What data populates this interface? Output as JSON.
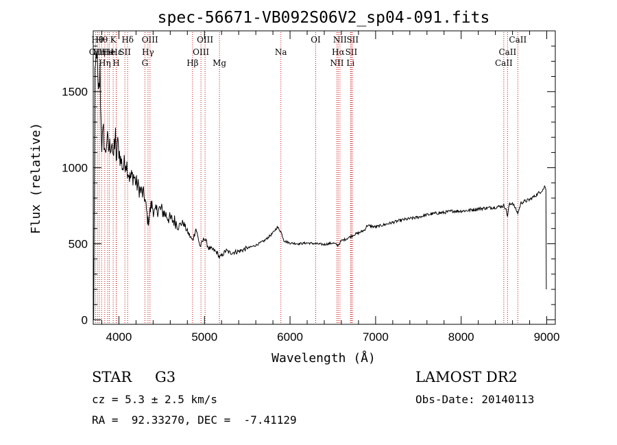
{
  "chart_data": {
    "type": "line",
    "title": "spec-56671-VB092S06V2_sp04-091.fits",
    "xlabel": "Wavelength (Å)",
    "ylabel": "Flux (relative)",
    "xlim": [
      3700,
      9100
    ],
    "ylim": [
      -30,
      1900
    ],
    "grid": false,
    "x_ticks": [
      4000,
      5000,
      6000,
      7000,
      8000,
      9000
    ],
    "x_tick_labels": [
      "4000",
      "5000",
      "6000",
      "7000",
      "8000",
      "9000"
    ],
    "y_ticks": [
      0,
      500,
      1000,
      1500
    ],
    "y_tick_labels": [
      "0",
      "500",
      "1000",
      "1500"
    ],
    "series": [
      {
        "x": [
          3705,
          3720,
          3740,
          3760,
          3780,
          3790,
          3800,
          3820,
          3840,
          3860,
          3880,
          3900,
          3920,
          3933,
          3945,
          3960,
          3968,
          3980,
          4000,
          4020,
          4050,
          4080,
          4100,
          4130,
          4170,
          4200,
          4250,
          4300,
          4340,
          4380,
          4420,
          4460,
          4500,
          4550,
          4600,
          4650,
          4700,
          4750,
          4800,
          4861,
          4900,
          4950,
          5000,
          5050,
          5100,
          5150,
          5175,
          5200,
          5250,
          5300,
          5400,
          5500,
          5600,
          5700,
          5800,
          5850,
          5893,
          5930,
          5970,
          6000,
          6100,
          6200,
          6300,
          6400,
          6500,
          6563,
          6600,
          6650,
          6700,
          6750,
          6800,
          6870,
          6900,
          7000,
          7100,
          7200,
          7300,
          7400,
          7500,
          7600,
          7700,
          7800,
          7900,
          8000,
          8100,
          8200,
          8300,
          8400,
          8450,
          8498,
          8520,
          8542,
          8560,
          8600,
          8662,
          8700,
          8800,
          8900,
          8960,
          8980,
          8990,
          8995
        ],
        "y": [
          0,
          1550,
          1800,
          1450,
          1620,
          1300,
          1150,
          1230,
          1080,
          1200,
          1120,
          1150,
          1180,
          1020,
          1150,
          1200,
          1000,
          1160,
          1120,
          1050,
          1000,
          1050,
          1000,
          930,
          950,
          900,
          850,
          810,
          640,
          760,
          700,
          730,
          720,
          690,
          660,
          650,
          620,
          640,
          580,
          520,
          600,
          480,
          540,
          470,
          460,
          440,
          410,
          420,
          455,
          440,
          450,
          470,
          490,
          520,
          570,
          610,
          580,
          520,
          510,
          505,
          500,
          505,
          500,
          495,
          505,
          490,
          520,
          530,
          545,
          560,
          570,
          590,
          620,
          610,
          625,
          640,
          655,
          665,
          675,
          690,
          700,
          705,
          715,
          715,
          720,
          730,
          735,
          740,
          745,
          750,
          735,
          680,
          755,
          770,
          700,
          770,
          790,
          830,
          860,
          880,
          850,
          200
        ]
      }
    ],
    "line_markers": [
      {
        "x": 3727,
        "label": "OII",
        "row": 1
      },
      {
        "x": 3750,
        "label": "Hθ",
        "row": 0
      },
      {
        "x": 3771,
        "label": "Hη",
        "row": 1
      },
      {
        "x": 3798,
        "label": "Hθ",
        "row": 0
      },
      {
        "x": 3835,
        "label": "Hη",
        "row": 2
      },
      {
        "x": 3869,
        "label": "He",
        "row": 1
      },
      {
        "x": 3889,
        "label": "He",
        "row": 1
      },
      {
        "x": 3933,
        "label": "K",
        "row": 0
      },
      {
        "x": 3968,
        "label": "H",
        "row": 2
      },
      {
        "x": 3970,
        "label": "Hε",
        "row": 1
      },
      {
        "x": 4070,
        "label": "SII",
        "row": 1
      },
      {
        "x": 4102,
        "label": "Hδ",
        "row": 0
      },
      {
        "x": 4304,
        "label": "G",
        "row": 2
      },
      {
        "x": 4340,
        "label": "Hγ",
        "row": 1
      },
      {
        "x": 4363,
        "label": "OIII",
        "row": 0
      },
      {
        "x": 4861,
        "label": "Hβ",
        "row": 2
      },
      {
        "x": 4959,
        "label": "OIII",
        "row": 1
      },
      {
        "x": 5007,
        "label": "OIII",
        "row": 0
      },
      {
        "x": 5175,
        "label": "Mg",
        "row": 2
      },
      {
        "x": 5893,
        "label": "Na",
        "row": 1
      },
      {
        "x": 6300,
        "label": "OI",
        "row": 0
      },
      {
        "x": 6548,
        "label": "NII",
        "row": 2
      },
      {
        "x": 6563,
        "label": "Hα",
        "row": 1
      },
      {
        "x": 6583,
        "label": "NII",
        "row": 0
      },
      {
        "x": 6707,
        "label": "Li",
        "row": 2
      },
      {
        "x": 6716,
        "label": "SII",
        "row": 1
      },
      {
        "x": 6731,
        "label": "SII",
        "row": 0
      },
      {
        "x": 8498,
        "label": "CaII",
        "row": 2
      },
      {
        "x": 8542,
        "label": "CaII",
        "row": 1
      },
      {
        "x": 8662,
        "label": "CaII",
        "row": 0
      }
    ]
  },
  "info": {
    "class": "STAR",
    "subclass": "G3",
    "survey": "LAMOST DR2",
    "redshift": "cz = 5.3 ± 2.5 km/s",
    "obs_date": "Obs-Date: 20140113",
    "coords": "RA =  92.33270, DEC =  -7.41129"
  }
}
